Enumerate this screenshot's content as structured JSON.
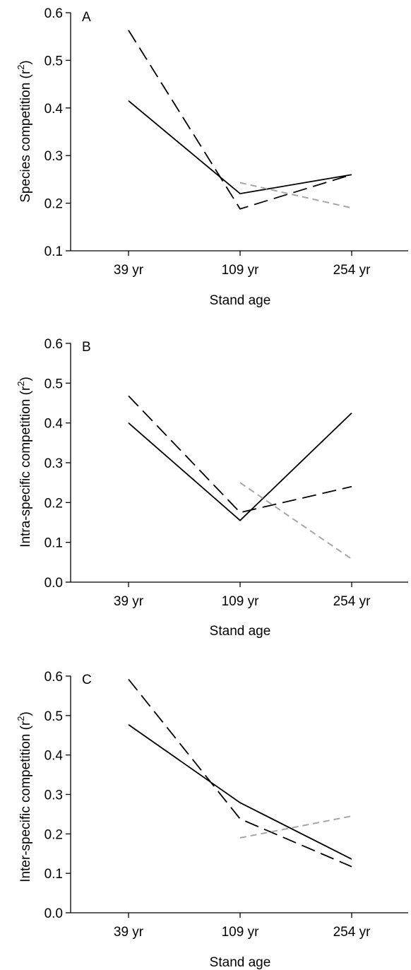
{
  "chart_data": [
    {
      "type": "line",
      "panel_label": "A",
      "categories": [
        "39 yr",
        "109 yr",
        "254 yr"
      ],
      "xlabel": "Stand age",
      "ylabel": "Species competition (r",
      "ylabel_sup": "2",
      "ylabel_end": ")",
      "ylim": [
        0.1,
        0.6
      ],
      "yticks": [
        "0.1",
        "0.2",
        "0.3",
        "0.4",
        "0.5",
        "0.6"
      ],
      "grid": false,
      "series": [
        {
          "style": "solid",
          "color": "#000000",
          "values": [
            0.415,
            0.22,
            0.26
          ]
        },
        {
          "style": "dashed",
          "color": "#000000",
          "values": [
            0.563,
            0.188,
            0.26
          ]
        },
        {
          "style": "dashed",
          "color": "#a6a6a6",
          "values": [
            null,
            0.243,
            0.19
          ]
        }
      ]
    },
    {
      "type": "line",
      "panel_label": "B",
      "categories": [
        "39 yr",
        "109 yr",
        "254 yr"
      ],
      "xlabel": "Stand age",
      "ylabel": "Intra-specific competition (r",
      "ylabel_sup": "2",
      "ylabel_end": ")",
      "ylim": [
        0.0,
        0.6
      ],
      "yticks": [
        "0.0",
        "0.1",
        "0.2",
        "0.3",
        "0.4",
        "0.5",
        "0.6"
      ],
      "grid": false,
      "series": [
        {
          "style": "solid",
          "color": "#000000",
          "values": [
            0.4,
            0.155,
            0.425
          ]
        },
        {
          "style": "dashed",
          "color": "#000000",
          "values": [
            0.468,
            0.175,
            0.24
          ]
        },
        {
          "style": "dashed",
          "color": "#a6a6a6",
          "values": [
            null,
            0.25,
            0.058
          ]
        }
      ]
    },
    {
      "type": "line",
      "panel_label": "C",
      "categories": [
        "39 yr",
        "109 yr",
        "254 yr"
      ],
      "xlabel": "Stand age",
      "ylabel": "Inter-specific competition (r",
      "ylabel_sup": "2",
      "ylabel_end": ")",
      "ylim": [
        0.0,
        0.6
      ],
      "yticks": [
        "0.0",
        "0.1",
        "0.2",
        "0.3",
        "0.4",
        "0.5",
        "0.6"
      ],
      "grid": false,
      "series": [
        {
          "style": "solid",
          "color": "#000000",
          "values": [
            0.477,
            0.279,
            0.136
          ]
        },
        {
          "style": "dashed",
          "color": "#000000",
          "values": [
            0.592,
            0.238,
            0.117
          ]
        },
        {
          "style": "dashed",
          "color": "#a6a6a6",
          "values": [
            null,
            0.19,
            0.245
          ]
        }
      ]
    }
  ]
}
